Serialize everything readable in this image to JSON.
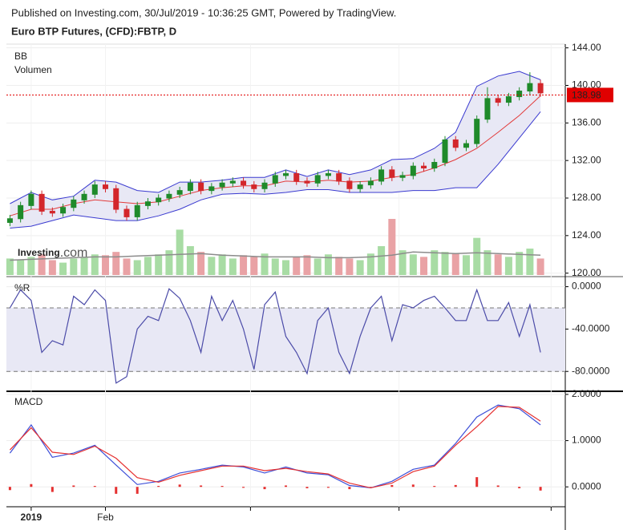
{
  "header": {
    "published": "Published on Investing.com, 30/Jul/2019 - 10:36:25 GMT, Powered by TradingView.",
    "instrument": "Euro BTP Futures, (CFD):FBTP, D"
  },
  "chart_data": [
    {
      "type": "candlestick",
      "labels": [
        "BB",
        "Volumen"
      ],
      "watermark": {
        "brand": "Investing",
        "suffix": ".com"
      },
      "x": [
        -5,
        -2,
        1,
        4,
        7,
        10,
        13,
        16,
        19,
        22,
        25,
        28,
        31,
        34,
        37,
        40,
        43,
        46,
        49,
        52,
        55,
        58,
        61,
        64,
        67,
        70,
        73,
        76,
        79,
        82,
        85,
        88,
        91,
        94,
        97,
        100,
        103,
        106,
        109,
        112,
        115,
        118,
        121,
        124,
        127,
        130,
        133,
        136,
        139,
        142,
        145
      ],
      "open": [
        125.4,
        125.8,
        127.2,
        128.4,
        126.6,
        126.4,
        127.0,
        127.8,
        128.4,
        129.4,
        129.0,
        126.8,
        126.0,
        127.2,
        127.6,
        128.0,
        128.4,
        128.8,
        129.6,
        128.8,
        129.2,
        129.6,
        129.8,
        129.4,
        129.0,
        129.6,
        130.4,
        130.6,
        129.8,
        129.6,
        130.4,
        130.6,
        129.8,
        129.0,
        129.4,
        129.8,
        131.0,
        130.2,
        130.4,
        131.4,
        131.2,
        131.8,
        134.2,
        133.4,
        133.8,
        136.4,
        138.6,
        138.2,
        138.8,
        139.4,
        140.2
      ],
      "high": [
        126.2,
        127.6,
        128.8,
        128.8,
        127.0,
        127.4,
        128.2,
        128.8,
        129.8,
        129.8,
        129.4,
        127.2,
        127.6,
        128.0,
        128.4,
        128.8,
        129.2,
        130.0,
        130.0,
        129.6,
        130.0,
        130.2,
        130.2,
        129.8,
        130.0,
        130.8,
        131.0,
        131.0,
        130.2,
        130.8,
        131.0,
        131.0,
        130.2,
        129.8,
        130.2,
        131.4,
        131.4,
        130.8,
        131.8,
        131.8,
        132.2,
        134.6,
        134.6,
        134.2,
        136.8,
        139.8,
        139.0,
        139.2,
        139.8,
        141.4,
        140.6
      ],
      "low": [
        125.0,
        125.4,
        126.8,
        126.2,
        126.0,
        126.0,
        126.6,
        127.4,
        128.0,
        128.6,
        126.4,
        125.6,
        125.6,
        126.8,
        127.2,
        127.6,
        128.0,
        128.4,
        128.4,
        128.4,
        128.8,
        129.2,
        129.0,
        128.6,
        128.6,
        129.2,
        130.0,
        129.4,
        129.2,
        129.2,
        130.0,
        129.4,
        128.6,
        128.6,
        129.0,
        129.4,
        129.8,
        129.8,
        130.0,
        130.8,
        130.8,
        131.4,
        133.0,
        133.0,
        133.4,
        136.0,
        137.8,
        137.8,
        138.4,
        139.0,
        138.8
      ],
      "close": [
        125.8,
        127.2,
        128.4,
        126.6,
        126.4,
        127.0,
        127.8,
        128.4,
        129.4,
        129.0,
        126.8,
        126.0,
        127.2,
        127.6,
        128.0,
        128.4,
        128.8,
        129.6,
        128.8,
        129.2,
        129.6,
        129.8,
        129.4,
        129.0,
        129.6,
        130.4,
        130.6,
        129.8,
        129.6,
        130.4,
        130.6,
        129.8,
        129.0,
        129.4,
        129.8,
        131.0,
        130.2,
        130.4,
        131.4,
        131.2,
        131.8,
        134.2,
        133.4,
        133.8,
        136.4,
        138.6,
        138.2,
        138.8,
        139.4,
        140.2,
        139.2
      ],
      "up_color": "#1f8a2a",
      "down_color": "#d3262b",
      "volume": [
        20,
        18,
        22,
        25,
        18,
        15,
        20,
        22,
        25,
        24,
        28,
        20,
        18,
        22,
        25,
        30,
        55,
        35,
        28,
        22,
        25,
        20,
        24,
        22,
        26,
        20,
        18,
        22,
        24,
        20,
        25,
        22,
        20,
        18,
        26,
        35,
        68,
        30,
        25,
        22,
        30,
        28,
        26,
        24,
        45,
        30,
        25,
        22,
        28,
        32,
        20
      ],
      "volume_up_color": "#a8dca4",
      "volume_down_color": "#e9a2a5",
      "bands": {
        "x": [
          -5,
          1,
          7,
          13,
          19,
          25,
          31,
          37,
          43,
          49,
          55,
          61,
          67,
          73,
          79,
          85,
          91,
          97,
          103,
          109,
          115,
          121,
          127,
          133,
          139,
          145
        ],
        "upper": [
          127.4,
          128.6,
          127.8,
          128.2,
          129.9,
          129.7,
          128.8,
          128.6,
          129.7,
          129.7,
          129.9,
          130.2,
          130.2,
          131.0,
          130.3,
          131.0,
          130.5,
          131.0,
          132.1,
          132.2,
          133.3,
          135.0,
          139.9,
          141.0,
          141.5,
          140.6
        ],
        "middle": [
          126.1,
          126.8,
          126.8,
          127.4,
          127.8,
          127.6,
          127.4,
          127.6,
          128.2,
          128.8,
          129.1,
          129.3,
          129.3,
          129.8,
          129.7,
          129.9,
          129.7,
          129.8,
          130.2,
          130.5,
          131.2,
          132.1,
          133.3,
          135.0,
          136.8,
          138.9
        ],
        "lower": [
          124.8,
          125.0,
          125.6,
          126.2,
          125.9,
          125.6,
          125.6,
          126.1,
          126.8,
          127.8,
          128.4,
          128.5,
          128.4,
          128.6,
          128.9,
          128.9,
          128.6,
          128.6,
          128.6,
          128.8,
          128.8,
          129.1,
          129.1,
          131.6,
          134.4,
          137.2
        ],
        "band_color": "#3a3ad0",
        "middle_color": "#e23b3b",
        "fill": "#e8e8f5"
      },
      "volume_ma": {
        "x": [
          -5,
          1,
          7,
          13,
          19,
          25,
          31,
          37,
          43,
          49,
          55,
          61,
          67,
          73,
          79,
          85,
          91,
          97,
          103,
          109,
          115,
          121,
          127,
          133,
          139,
          145
        ],
        "values": [
          18,
          19,
          20,
          21,
          22,
          22,
          23,
          24,
          25,
          26,
          24,
          23,
          22,
          22,
          22,
          21,
          21,
          22,
          24,
          28,
          27,
          26,
          27,
          26,
          25,
          24
        ],
        "color": "#8c8c8c"
      },
      "last_price": 138.98,
      "last_price_color": "#e00000",
      "xlim": [
        -6,
        152
      ],
      "ylim": [
        119.8,
        144.4
      ],
      "yticks": [
        {
          "value": 120,
          "label": "120.00"
        },
        {
          "value": 124,
          "label": "124.00"
        },
        {
          "value": 128,
          "label": "128.00"
        },
        {
          "value": 132,
          "label": "132.00"
        },
        {
          "value": 136,
          "label": "136.00"
        },
        {
          "value": 140,
          "label": "140.00"
        },
        {
          "value": 144,
          "label": "144.00"
        }
      ]
    },
    {
      "type": "line",
      "title": "%R",
      "color": "#4b4ba8",
      "x": [
        -5,
        -2,
        1,
        4,
        7,
        10,
        13,
        16,
        19,
        22,
        25,
        28,
        31,
        34,
        37,
        40,
        43,
        46,
        49,
        52,
        55,
        58,
        61,
        64,
        67,
        70,
        73,
        76,
        79,
        82,
        85,
        88,
        91,
        94,
        97,
        100,
        103,
        106,
        109,
        112,
        115,
        118,
        121,
        124,
        127,
        130,
        133,
        136,
        139,
        142,
        145
      ],
      "values": [
        -20,
        -3,
        -13,
        -62,
        -51,
        -55,
        -9,
        -17,
        -3,
        -13,
        -91,
        -85,
        -40,
        -28,
        -32,
        -2,
        -11,
        -32,
        -62,
        -9,
        -32,
        -13,
        -40,
        -78,
        -17,
        -5,
        -47,
        -62,
        -82,
        -32,
        -20,
        -62,
        -82,
        -47,
        -20,
        -9,
        -51,
        -17,
        -20,
        -13,
        -9,
        -20,
        -32,
        -32,
        -3,
        -32,
        -32,
        -15,
        -47,
        -17,
        -62
      ],
      "levels": [
        -20,
        -80
      ],
      "band_fill": "#e8e8f5",
      "xlim": [
        -6,
        152
      ],
      "ylim": [
        -98,
        8
      ],
      "yticks": [
        {
          "value": 0,
          "label": "0.0000"
        },
        {
          "value": -40,
          "label": "-40.0000"
        },
        {
          "value": -80,
          "label": "-80.0000"
        }
      ]
    },
    {
      "type": "line",
      "title": "MACD",
      "x": [
        -5,
        1,
        7,
        13,
        19,
        25,
        31,
        37,
        43,
        49,
        55,
        61,
        67,
        73,
        79,
        85,
        91,
        97,
        103,
        109,
        115,
        121,
        127,
        133,
        139,
        145
      ],
      "series": [
        {
          "color": "#3d4fd8",
          "values": [
            0.73,
            1.34,
            0.64,
            0.73,
            0.9,
            0.47,
            0.05,
            0.12,
            0.3,
            0.38,
            0.47,
            0.43,
            0.3,
            0.43,
            0.3,
            0.26,
            0.03,
            -0.02,
            0.12,
            0.38,
            0.47,
            0.94,
            1.51,
            1.77,
            1.69,
            1.34
          ]
        },
        {
          "color": "#e53030",
          "values": [
            0.8,
            1.28,
            0.75,
            0.7,
            0.88,
            0.62,
            0.2,
            0.1,
            0.25,
            0.35,
            0.45,
            0.45,
            0.35,
            0.4,
            0.33,
            0.28,
            0.08,
            -0.02,
            0.08,
            0.33,
            0.45,
            0.9,
            1.3,
            1.74,
            1.72,
            1.42
          ]
        }
      ],
      "histogram": {
        "color": "#e53030",
        "values": [
          -0.07,
          0.06,
          -0.11,
          0.03,
          0.02,
          -0.15,
          -0.15,
          0.02,
          0.05,
          0.03,
          0.02,
          -0.02,
          -0.05,
          0.03,
          -0.03,
          -0.02,
          -0.05,
          0,
          0.04,
          0.05,
          0.02,
          0.04,
          0.21,
          0.03,
          -0.03,
          -0.08
        ]
      },
      "xlim": [
        -6,
        152
      ],
      "ylim": [
        -0.43,
        2.05
      ],
      "yticks": [
        {
          "value": 0,
          "label": "0.0000"
        },
        {
          "value": 1,
          "label": "1.0000"
        },
        {
          "value": 2,
          "label": "2.0000"
        }
      ],
      "xticks": [
        {
          "value": 1,
          "label": "2019"
        },
        {
          "value": 22,
          "label": "Feb"
        },
        {
          "value": 63,
          "label": null
        },
        {
          "value": 105,
          "label": null
        },
        {
          "value": 148,
          "label": null
        }
      ]
    }
  ]
}
